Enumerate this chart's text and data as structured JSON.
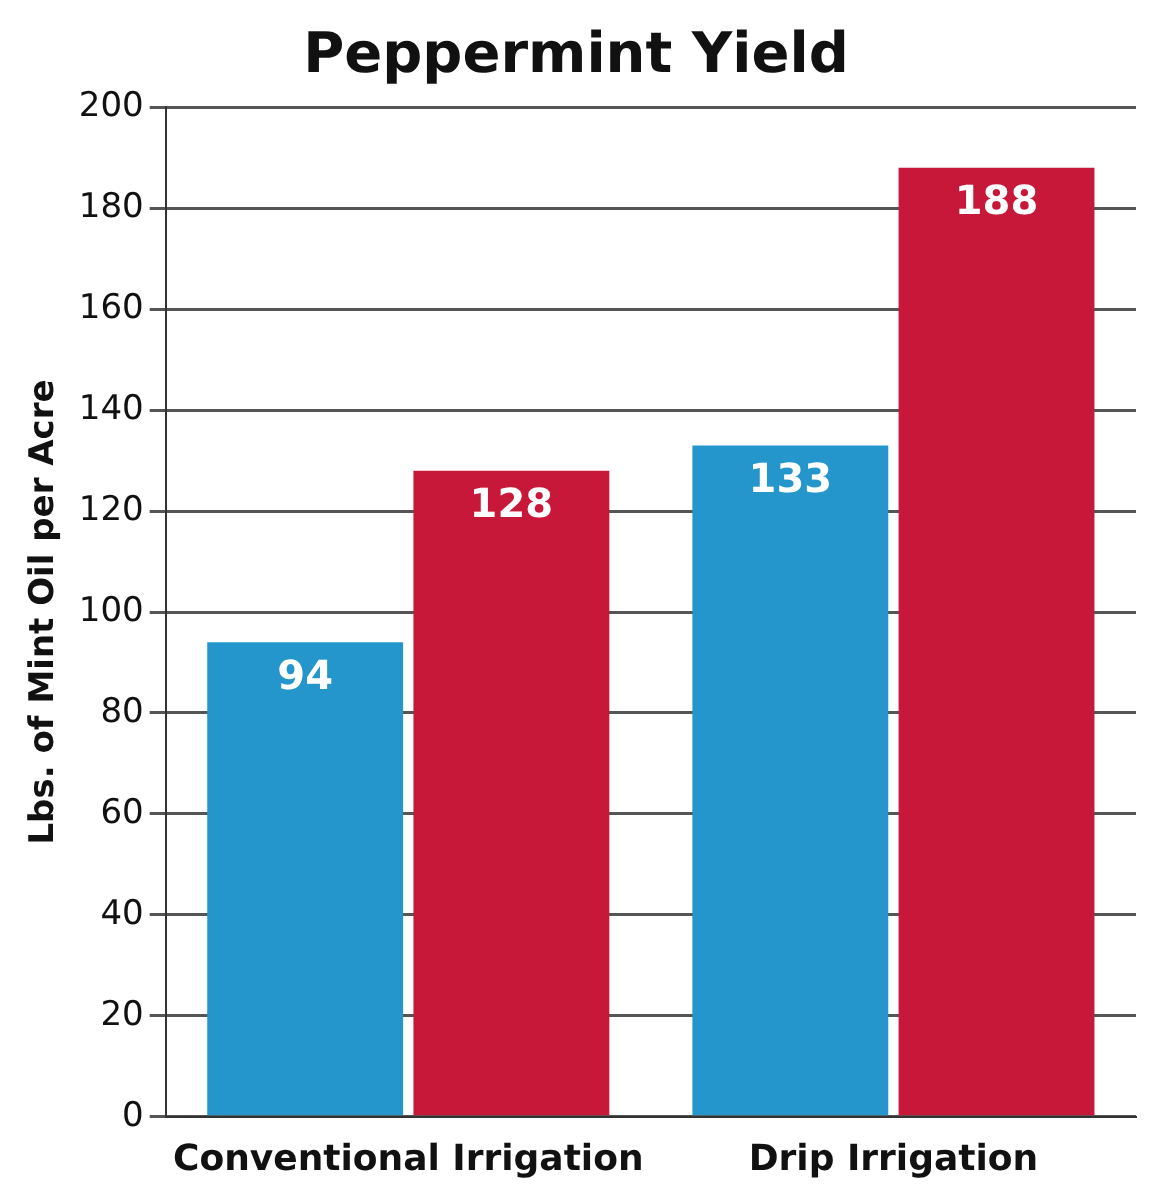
{
  "chart_data": {
    "type": "bar",
    "title": "Peppermint Yield",
    "ylabel": "Lbs. of Mint Oil per Acre",
    "categories": [
      "Conventional Irrigation",
      "Drip Irrigation"
    ],
    "series": [
      {
        "color": "#2596cc",
        "values": [
          94,
          133
        ]
      },
      {
        "color": "#c8183a",
        "values": [
          128,
          188
        ]
      }
    ],
    "ylim": [
      0,
      200
    ],
    "yticks": [
      0,
      20,
      40,
      60,
      80,
      100,
      120,
      140,
      160,
      180,
      200
    ],
    "grid": "y",
    "data_labels": true
  }
}
